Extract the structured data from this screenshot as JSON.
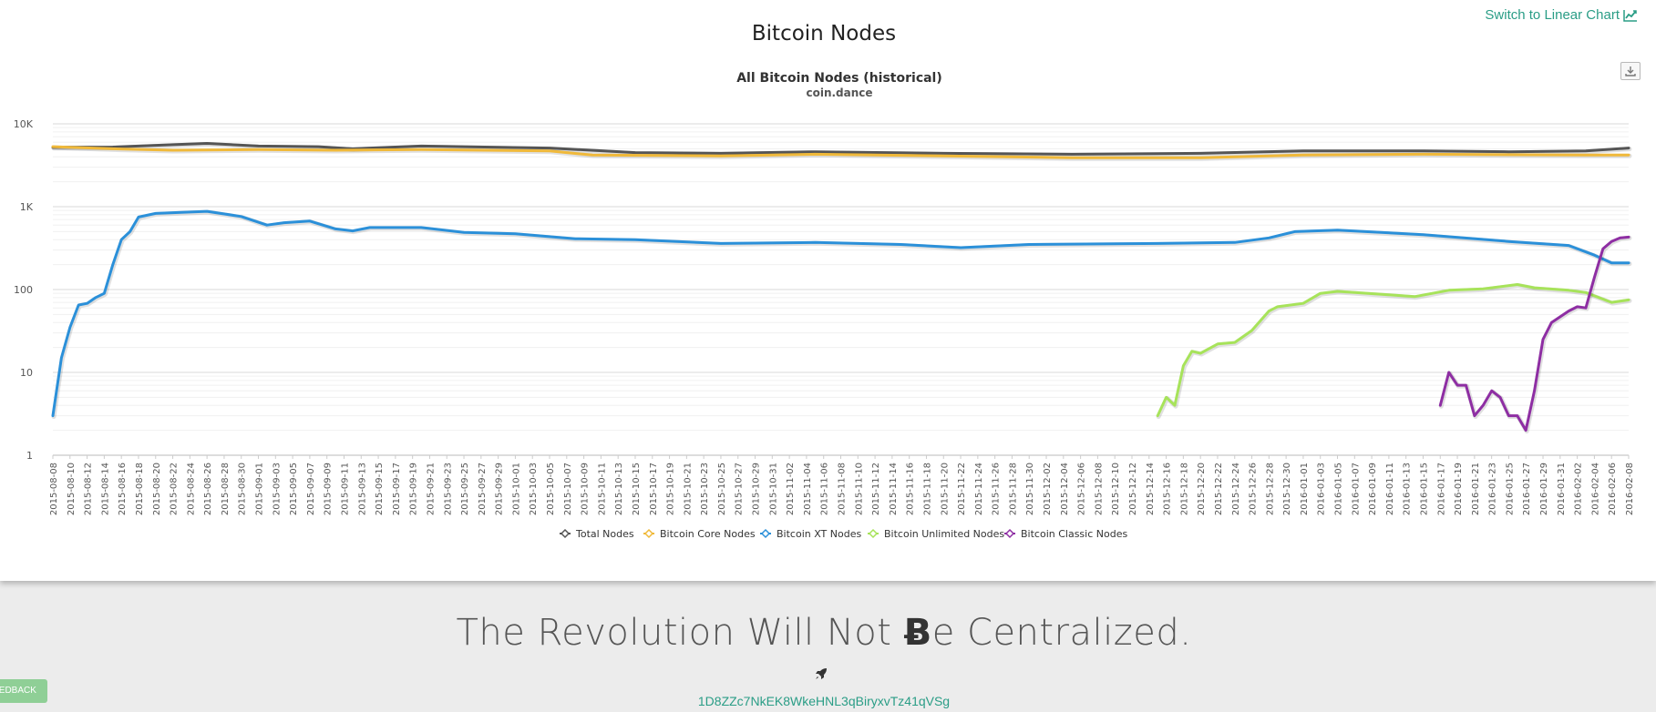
{
  "page": {
    "title": "Bitcoin Nodes",
    "switch_label": "Switch to Linear Chart",
    "switch_icon": "line-chart-icon",
    "export_icon": "download-icon"
  },
  "footer": {
    "tagline_before": "The Revolution Will Not ",
    "tagline_glyph": "Ƀ",
    "tagline_after": "e Centralized.",
    "rocket_icon": "rocket-icon",
    "address": "1D8ZZc7NkEK8WkeHNL3qBiryxvTz41qVSg",
    "feedback_label": "FEEDBACK"
  },
  "chart_data": {
    "type": "line",
    "title": "All Bitcoin Nodes (historical)",
    "subtitle": "coin.dance",
    "y_scale": "log",
    "ylim": [
      1,
      10000
    ],
    "y_ticks": [
      {
        "value": 1,
        "label": "1"
      },
      {
        "value": 10,
        "label": "10"
      },
      {
        "value": 100,
        "label": "100"
      },
      {
        "value": 1000,
        "label": "1K"
      },
      {
        "value": 10000,
        "label": "10K"
      }
    ],
    "x_start": "2015-08-08",
    "x_end": "2016-02-08",
    "grid": true,
    "legend_position": "bottom",
    "series": [
      {
        "name": "Total Nodes",
        "color": "#555555",
        "points": [
          [
            "2015-08-08",
            5200
          ],
          [
            "2015-08-15",
            5250
          ],
          [
            "2015-08-22",
            5600
          ],
          [
            "2015-08-26",
            5800
          ],
          [
            "2015-09-01",
            5400
          ],
          [
            "2015-09-08",
            5300
          ],
          [
            "2015-09-12",
            5000
          ],
          [
            "2015-09-20",
            5400
          ],
          [
            "2015-10-05",
            5100
          ],
          [
            "2015-10-15",
            4500
          ],
          [
            "2015-10-25",
            4400
          ],
          [
            "2015-11-05",
            4600
          ],
          [
            "2015-11-20",
            4400
          ],
          [
            "2015-12-05",
            4300
          ],
          [
            "2015-12-20",
            4400
          ],
          [
            "2016-01-01",
            4700
          ],
          [
            "2016-01-15",
            4700
          ],
          [
            "2016-01-25",
            4600
          ],
          [
            "2016-02-03",
            4700
          ],
          [
            "2016-02-08",
            5100
          ]
        ]
      },
      {
        "name": "Bitcoin Core Nodes",
        "color": "#f0b93a",
        "points": [
          [
            "2015-08-08",
            5300
          ],
          [
            "2015-08-15",
            5000
          ],
          [
            "2015-08-22",
            4800
          ],
          [
            "2015-09-01",
            4900
          ],
          [
            "2015-09-10",
            4800
          ],
          [
            "2015-09-20",
            4900
          ],
          [
            "2015-10-05",
            4700
          ],
          [
            "2015-10-10",
            4200
          ],
          [
            "2015-10-25",
            4100
          ],
          [
            "2015-11-05",
            4300
          ],
          [
            "2015-11-20",
            4100
          ],
          [
            "2015-12-05",
            3900
          ],
          [
            "2015-12-20",
            3900
          ],
          [
            "2016-01-01",
            4200
          ],
          [
            "2016-01-15",
            4300
          ],
          [
            "2016-02-03",
            4200
          ],
          [
            "2016-02-08",
            4200
          ]
        ]
      },
      {
        "name": "Bitcoin XT Nodes",
        "color": "#2b90d9",
        "points": [
          [
            "2015-08-08",
            3
          ],
          [
            "2015-08-09",
            15
          ],
          [
            "2015-08-10",
            35
          ],
          [
            "2015-08-11",
            65
          ],
          [
            "2015-08-12",
            68
          ],
          [
            "2015-08-13",
            80
          ],
          [
            "2015-08-14",
            90
          ],
          [
            "2015-08-15",
            200
          ],
          [
            "2015-08-16",
            400
          ],
          [
            "2015-08-17",
            500
          ],
          [
            "2015-08-18",
            750
          ],
          [
            "2015-08-20",
            830
          ],
          [
            "2015-08-26",
            880
          ],
          [
            "2015-08-30",
            760
          ],
          [
            "2015-09-02",
            600
          ],
          [
            "2015-09-04",
            640
          ],
          [
            "2015-09-07",
            670
          ],
          [
            "2015-09-10",
            540
          ],
          [
            "2015-09-12",
            510
          ],
          [
            "2015-09-14",
            560
          ],
          [
            "2015-09-20",
            560
          ],
          [
            "2015-09-25",
            490
          ],
          [
            "2015-10-01",
            470
          ],
          [
            "2015-10-08",
            410
          ],
          [
            "2015-10-15",
            400
          ],
          [
            "2015-10-25",
            360
          ],
          [
            "2015-11-05",
            370
          ],
          [
            "2015-11-15",
            350
          ],
          [
            "2015-11-22",
            320
          ],
          [
            "2015-11-30",
            350
          ],
          [
            "2015-12-15",
            360
          ],
          [
            "2015-12-24",
            370
          ],
          [
            "2015-12-28",
            420
          ],
          [
            "2015-12-31",
            500
          ],
          [
            "2016-01-05",
            520
          ],
          [
            "2016-01-15",
            460
          ],
          [
            "2016-01-25",
            380
          ],
          [
            "2016-02-01",
            340
          ],
          [
            "2016-02-04",
            260
          ],
          [
            "2016-02-06",
            210
          ],
          [
            "2016-02-08",
            210
          ]
        ]
      },
      {
        "name": "Bitcoin Unlimited Nodes",
        "color": "#a7e35a",
        "points": [
          [
            "2015-12-15",
            3
          ],
          [
            "2015-12-16",
            5
          ],
          [
            "2015-12-17",
            4
          ],
          [
            "2015-12-18",
            12
          ],
          [
            "2015-12-19",
            18
          ],
          [
            "2015-12-20",
            17
          ],
          [
            "2015-12-22",
            22
          ],
          [
            "2015-12-24",
            23
          ],
          [
            "2015-12-26",
            32
          ],
          [
            "2015-12-28",
            55
          ],
          [
            "2015-12-29",
            62
          ],
          [
            "2016-01-01",
            68
          ],
          [
            "2016-01-03",
            90
          ],
          [
            "2016-01-05",
            95
          ],
          [
            "2016-01-10",
            88
          ],
          [
            "2016-01-14",
            82
          ],
          [
            "2016-01-18",
            98
          ],
          [
            "2016-01-22",
            102
          ],
          [
            "2016-01-26",
            115
          ],
          [
            "2016-01-28",
            105
          ],
          [
            "2016-02-01",
            98
          ],
          [
            "2016-02-03",
            92
          ],
          [
            "2016-02-06",
            70
          ],
          [
            "2016-02-08",
            75
          ]
        ]
      },
      {
        "name": "Bitcoin Classic Nodes",
        "color": "#8e2ea3",
        "points": [
          [
            "2016-01-17",
            4
          ],
          [
            "2016-01-18",
            10
          ],
          [
            "2016-01-19",
            7
          ],
          [
            "2016-01-20",
            7
          ],
          [
            "2016-01-21",
            3
          ],
          [
            "2016-01-22",
            4
          ],
          [
            "2016-01-23",
            6
          ],
          [
            "2016-01-24",
            5
          ],
          [
            "2016-01-25",
            3
          ],
          [
            "2016-01-26",
            3
          ],
          [
            "2016-01-27",
            2
          ],
          [
            "2016-01-28",
            6
          ],
          [
            "2016-01-29",
            25
          ],
          [
            "2016-01-30",
            40
          ],
          [
            "2016-02-01",
            55
          ],
          [
            "2016-02-02",
            62
          ],
          [
            "2016-02-03",
            60
          ],
          [
            "2016-02-04",
            140
          ],
          [
            "2016-02-05",
            310
          ],
          [
            "2016-02-06",
            380
          ],
          [
            "2016-02-07",
            420
          ],
          [
            "2016-02-08",
            430
          ]
        ]
      }
    ]
  }
}
